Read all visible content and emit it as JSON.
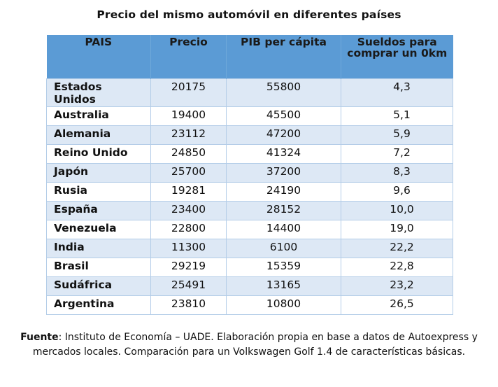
{
  "title": "Precio del mismo automóvil en diferentes países",
  "columns": [
    "PAIS",
    "Precio",
    "PIB  per cápita",
    "Sueldos para comprar un 0km"
  ],
  "rows": [
    {
      "pais": "Estados Unidos",
      "precio": "20175",
      "pib": "55800",
      "sueldos": "4,3"
    },
    {
      "pais": "Australia",
      "precio": "19400",
      "pib": "45500",
      "sueldos": "5,1"
    },
    {
      "pais": "Alemania",
      "precio": "23112",
      "pib": "47200",
      "sueldos": "5,9"
    },
    {
      "pais": "Reino Unido",
      "precio": "24850",
      "pib": "41324",
      "sueldos": "7,2"
    },
    {
      "pais": "Japón",
      "precio": "25700",
      "pib": "37200",
      "sueldos": "8,3"
    },
    {
      "pais": "Rusia",
      "precio": "19281",
      "pib": "24190",
      "sueldos": "9,6"
    },
    {
      "pais": "España",
      "precio": "23400",
      "pib": "28152",
      "sueldos": "10,0"
    },
    {
      "pais": "Venezuela",
      "precio": "22800",
      "pib": "14400",
      "sueldos": "19,0"
    },
    {
      "pais": "India",
      "precio": "11300",
      "pib": "6100",
      "sueldos": "22,2"
    },
    {
      "pais": "Brasil",
      "precio": "29219",
      "pib": "15359",
      "sueldos": "22,8"
    },
    {
      "pais": "Sudáfrica",
      "precio": "25491",
      "pib": "13165",
      "sueldos": "23,2"
    },
    {
      "pais": "Argentina",
      "precio": "23810",
      "pib": "10800",
      "sueldos": "26,5"
    }
  ],
  "footnote": {
    "label": "Fuente",
    "text": ": Instituto de Economía – UADE.  Elaboración propia en base a datos de Autoexpress y mercados locales. Comparación  para un Volkswagen Golf 1.4 de características básicas."
  }
}
